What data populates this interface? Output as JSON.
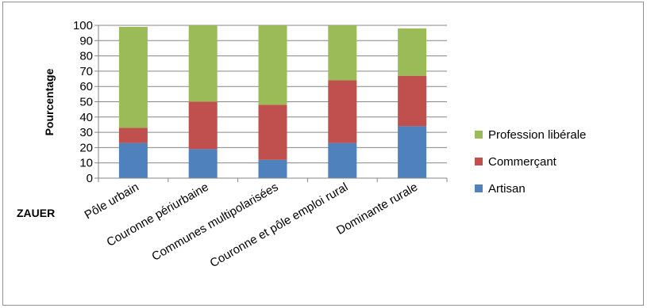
{
  "chart_data": {
    "type": "bar",
    "stacked": true,
    "title": "",
    "xlabel": "ZAUER",
    "ylabel": "Pourcentage",
    "ylim": [
      0,
      100
    ],
    "yticks": [
      0,
      10,
      20,
      30,
      40,
      50,
      60,
      70,
      80,
      90,
      100
    ],
    "grid": true,
    "legend_position": "right",
    "categories": [
      "Pôle urbain",
      "Couronne périurbaine",
      "Communes multipolarisées",
      "Couronne et pôle emploi rural",
      "Dominante rurale"
    ],
    "series": [
      {
        "name": "Artisan",
        "color": "#4f81bd",
        "values": [
          23,
          19,
          12,
          23,
          34
        ]
      },
      {
        "name": "Commerçant",
        "color": "#c0504d",
        "values": [
          10,
          31,
          36,
          41,
          33
        ]
      },
      {
        "name": "Profession libérale",
        "color": "#9bbb59",
        "values": [
          66,
          50,
          52,
          36,
          31
        ]
      }
    ]
  }
}
